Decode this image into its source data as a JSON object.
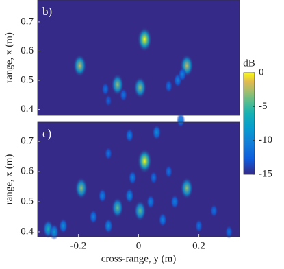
{
  "chart_data": [
    {
      "type": "heatmap",
      "label": "b)",
      "ylabel": "range, x (m)",
      "x": [
        0.02,
        -0.195,
        0.16,
        -0.07,
        0.005,
        0.13,
        0.145,
        -0.11,
        -0.05,
        -0.1,
        0.1
      ],
      "y": [
        0.64,
        0.55,
        0.55,
        0.485,
        0.475,
        0.5,
        0.52,
        0.47,
        0.45,
        0.43,
        0.48
      ],
      "values": [
        0,
        -2,
        -2,
        -3,
        -3,
        -10,
        -10,
        -11,
        -11,
        -12,
        -11
      ],
      "xlim": [
        -0.335,
        0.335
      ],
      "ylim": [
        0.38,
        0.775
      ],
      "yticks": [
        0.4,
        0.5,
        0.6,
        0.7
      ],
      "clabel": "dB",
      "clim": [
        -15,
        0
      ],
      "cticks": [
        0,
        -5,
        -10,
        -15
      ]
    },
    {
      "type": "heatmap",
      "label": "c)",
      "ylabel": "range, x (m)",
      "xlabel": "cross-range, y (m)",
      "x": [
        0.02,
        -0.19,
        0.16,
        -0.07,
        0.005,
        -0.03,
        0.06,
        0.14,
        -0.1,
        0.1,
        -0.02,
        0.05,
        -0.12,
        0.12,
        -0.03,
        0.04,
        -0.3,
        -0.28,
        -0.25,
        -0.1,
        0.08,
        0.2,
        0.25,
        0.3,
        -0.15
      ],
      "y": [
        0.635,
        0.545,
        0.545,
        0.48,
        0.47,
        0.72,
        0.73,
        0.77,
        0.66,
        0.6,
        0.58,
        0.58,
        0.52,
        0.5,
        0.52,
        0.5,
        0.41,
        0.4,
        0.42,
        0.42,
        0.44,
        0.42,
        0.47,
        0.4,
        0.45
      ],
      "values": [
        0,
        -3,
        -3,
        -4,
        -4,
        -10,
        -9,
        -10,
        -11,
        -11,
        -10,
        -11,
        -10,
        -10,
        -9,
        -10,
        -6,
        -8,
        -9,
        -9,
        -10,
        -11,
        -11,
        -11,
        -10
      ],
      "xlim": [
        -0.335,
        0.335
      ],
      "ylim": [
        0.384,
        0.764
      ],
      "yticks": [
        0.4,
        0.5,
        0.6,
        0.7
      ],
      "xticks": [
        -0.2,
        0,
        0.2
      ]
    }
  ]
}
